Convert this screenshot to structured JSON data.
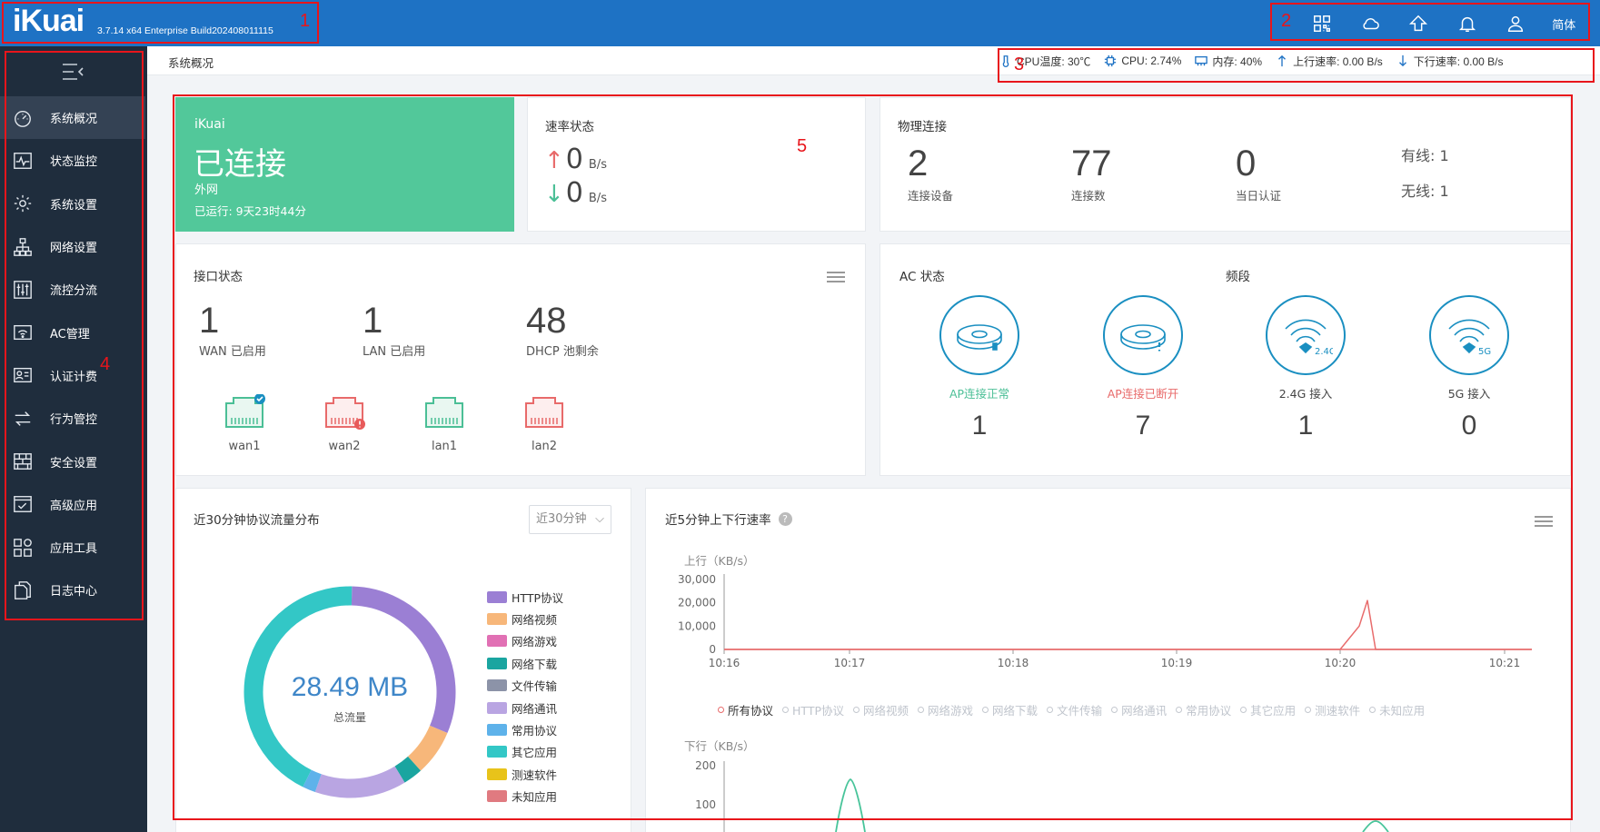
{
  "header": {
    "logo": "iKuai",
    "build": "3.7.14 x64 Enterprise Build202408011115",
    "lang": "简体",
    "icons": [
      "qrcode-icon",
      "cloud-icon",
      "upgrade-icon",
      "bell-icon",
      "user-icon"
    ]
  },
  "annotations": [
    "1",
    "2",
    "3",
    "4",
    "5"
  ],
  "breadcrumb": "系统概况",
  "system_status": {
    "cpu_temp": "CPU温度: 30℃",
    "cpu": "CPU: 2.74%",
    "memory": "内存: 40%",
    "upload": "上行速率: 0.00 B/s",
    "download": "下行速率: 0.00 B/s"
  },
  "sidebar": {
    "items": [
      {
        "label": "系统概况",
        "icon": "dashboard-icon",
        "active": true
      },
      {
        "label": "状态监控",
        "icon": "monitor-icon"
      },
      {
        "label": "系统设置",
        "icon": "gear-icon"
      },
      {
        "label": "网络设置",
        "icon": "network-icon"
      },
      {
        "label": "流控分流",
        "icon": "sliders-icon"
      },
      {
        "label": "AC管理",
        "icon": "wifi-router-icon"
      },
      {
        "label": "认证计费",
        "icon": "id-card-icon"
      },
      {
        "label": "行为管控",
        "icon": "arrows-icon"
      },
      {
        "label": "安全设置",
        "icon": "firewall-icon"
      },
      {
        "label": "高级应用",
        "icon": "check-box-icon"
      },
      {
        "label": "应用工具",
        "icon": "grid-icon"
      },
      {
        "label": "日志中心",
        "icon": "documents-icon"
      }
    ]
  },
  "wan_card": {
    "brand": "iKuai",
    "status": "已连接",
    "type": "外网",
    "uptime": "已运行: 9天23时44分"
  },
  "rate_card": {
    "title": "速率状态",
    "up_value": "0",
    "down_value": "0",
    "unit": "B/s"
  },
  "physical_card": {
    "title": "物理连接",
    "devices": "2",
    "devices_label": "连接设备",
    "connections": "77",
    "connections_label": "连接数",
    "auth_today": "0",
    "auth_today_label": "当日认证",
    "wired": "有线: 1",
    "wireless": "无线: 1"
  },
  "interface_card": {
    "title": "接口状态",
    "wan_count": "1",
    "wan_label": "WAN 已启用",
    "lan_count": "1",
    "lan_label": "LAN 已启用",
    "dhcp_count": "48",
    "dhcp_label": "DHCP 池剩余",
    "ports": [
      {
        "name": "wan1",
        "color": "#4bbf96",
        "badge": "check"
      },
      {
        "name": "wan2",
        "color": "#e86a6a",
        "badge": "error"
      },
      {
        "name": "lan1",
        "color": "#4bbf96",
        "badge": ""
      },
      {
        "name": "lan2",
        "color": "#e86a6a",
        "badge": ""
      }
    ]
  },
  "ac_card": {
    "title": "AC 状态",
    "band_title": "频段",
    "items": [
      {
        "label": "AP连接正常",
        "count": "1",
        "label_color": "#4bbf96"
      },
      {
        "label": "AP连接已断开",
        "count": "7",
        "label_color": "#e86a6a"
      },
      {
        "label": "2.4G 接入",
        "count": "1",
        "label_color": "#444444"
      },
      {
        "label": "5G 接入",
        "count": "0",
        "label_color": "#444444"
      }
    ],
    "band_tags": [
      "2.4G",
      "5G"
    ]
  },
  "protocol_card": {
    "title": "近30分钟协议流量分布",
    "select_value": "近30分钟",
    "total_value": "28.49 MB",
    "total_label": "总流量",
    "legend": [
      {
        "name": "HTTP协议",
        "color": "#9b7fd4"
      },
      {
        "name": "网络视频",
        "color": "#f7b77a"
      },
      {
        "name": "网络游戏",
        "color": "#e170b4"
      },
      {
        "name": "网络下载",
        "color": "#1aa5a0"
      },
      {
        "name": "文件传输",
        "color": "#8c93a8"
      },
      {
        "name": "网络通讯",
        "color": "#b9a5e2"
      },
      {
        "name": "常用协议",
        "color": "#5eb2ea"
      },
      {
        "name": "其它应用",
        "color": "#33c7c6"
      },
      {
        "name": "测速软件",
        "color": "#e8c31a"
      },
      {
        "name": "未知应用",
        "color": "#e07a80"
      }
    ]
  },
  "chart_data": {
    "type": "pie",
    "categories": [
      "HTTP协议",
      "网络视频",
      "网络游戏",
      "网络下载",
      "文件传输",
      "网络通讯",
      "常用协议",
      "其它应用",
      "测速软件",
      "未知应用"
    ],
    "values": [
      31,
      7,
      0,
      3,
      0,
      14,
      2,
      43,
      0,
      0
    ],
    "title": "近30分钟协议流量分布"
  },
  "rate_chart": {
    "title": "近5分钟上下行速率",
    "up_label": "上行（KB/s）",
    "down_label": "下行（KB/s）",
    "up_ticks": [
      "30,000",
      "20,000",
      "10,000",
      "0"
    ],
    "down_ticks": [
      "200",
      "100"
    ],
    "x_ticks": [
      "10:16",
      "10:17",
      "10:18",
      "10:19",
      "10:20",
      "10:21"
    ],
    "legend": [
      "所有协议",
      "HTTP协议",
      "网络视频",
      "网络游戏",
      "网络下载",
      "文件传输",
      "网络通讯",
      "常用协议",
      "其它应用",
      "测速软件",
      "未知应用"
    ],
    "series_color": "#e86c6c",
    "down_series_color": "#48c49a",
    "up_series": {
      "x": [
        "10:16",
        "10:17",
        "10:18",
        "10:19",
        "10:20",
        "10:20:10",
        "10:20:15",
        "10:20:20",
        "10:21"
      ],
      "y": [
        0,
        0,
        0,
        0,
        0,
        10000,
        21000,
        0,
        0
      ]
    }
  }
}
